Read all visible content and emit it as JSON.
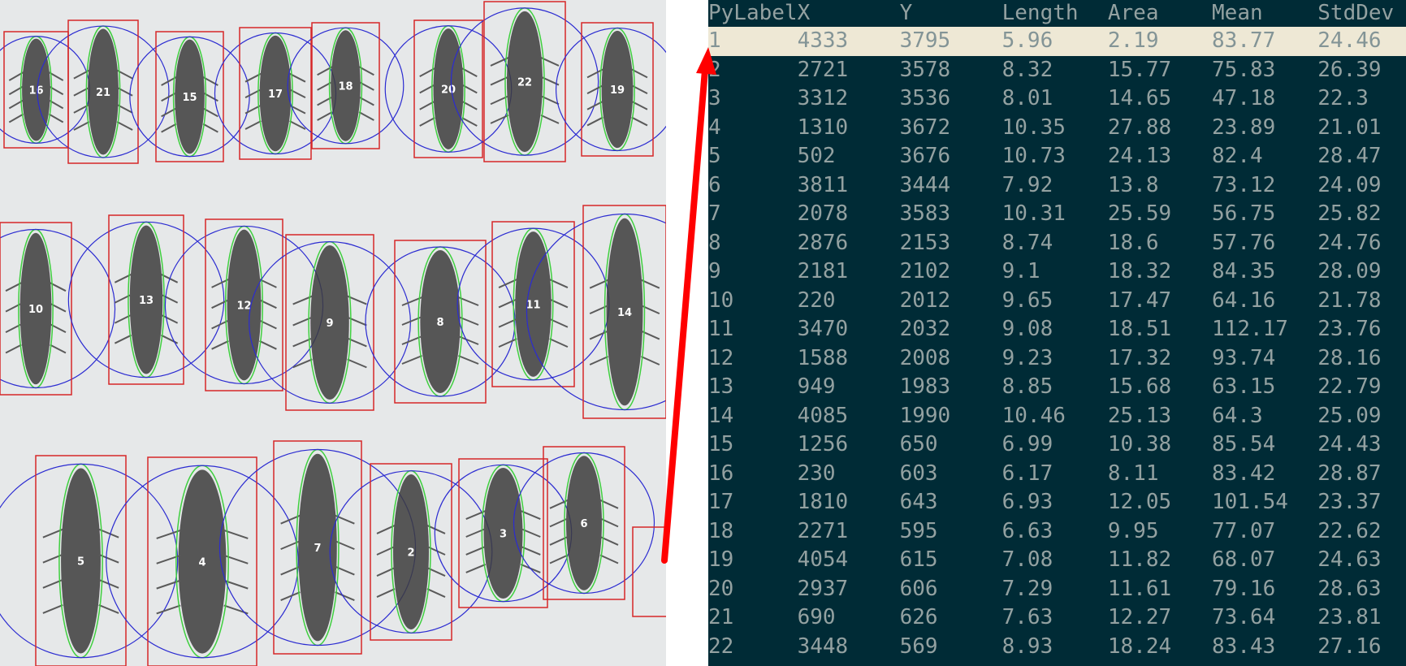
{
  "specimen_image": {
    "labels": [
      "16",
      "21",
      "15",
      "17",
      "18",
      "20",
      "22",
      "19",
      "10",
      "13",
      "12",
      "9",
      "8",
      "11",
      "14",
      "5",
      "4",
      "7",
      "2",
      "3",
      "6"
    ]
  },
  "results_table": {
    "columns": [
      "PyLabel",
      "X",
      "Y",
      "Length",
      "Area",
      "Mean",
      "StdDev"
    ],
    "selected_row": 1,
    "rows": [
      [
        "1",
        "4333",
        "3795",
        "5.96",
        "2.19",
        "83.77",
        "24.46"
      ],
      [
        "2",
        "2721",
        "3578",
        "8.32",
        "15.77",
        "75.83",
        "26.39"
      ],
      [
        "3",
        "3312",
        "3536",
        "8.01",
        "14.65",
        "47.18",
        "22.3"
      ],
      [
        "4",
        "1310",
        "3672",
        "10.35",
        "27.88",
        "23.89",
        "21.01"
      ],
      [
        "5",
        "502",
        "3676",
        "10.73",
        "24.13",
        "82.4",
        "28.47"
      ],
      [
        "6",
        "3811",
        "3444",
        "7.92",
        "13.8",
        "73.12",
        "24.09"
      ],
      [
        "7",
        "2078",
        "3583",
        "10.31",
        "25.59",
        "56.75",
        "25.82"
      ],
      [
        "8",
        "2876",
        "2153",
        "8.74",
        "18.6",
        "57.76",
        "24.76"
      ],
      [
        "9",
        "2181",
        "2102",
        "9.1",
        "18.32",
        "84.35",
        "28.09"
      ],
      [
        "10",
        "220",
        "2012",
        "9.65",
        "17.47",
        "64.16",
        "21.78"
      ],
      [
        "11",
        "3470",
        "2032",
        "9.08",
        "18.51",
        "112.17",
        "23.76"
      ],
      [
        "12",
        "1588",
        "2008",
        "9.23",
        "17.32",
        "93.74",
        "28.16"
      ],
      [
        "13",
        "949",
        "1983",
        "8.85",
        "15.68",
        "63.15",
        "22.79"
      ],
      [
        "14",
        "4085",
        "1990",
        "10.46",
        "25.13",
        "64.3",
        "25.09"
      ],
      [
        "15",
        "1256",
        "650",
        "6.99",
        "10.38",
        "85.54",
        "24.43"
      ],
      [
        "16",
        "230",
        "603",
        "6.17",
        "8.11",
        "83.42",
        "28.87"
      ],
      [
        "17",
        "1810",
        "643",
        "6.93",
        "12.05",
        "101.54",
        "23.37"
      ],
      [
        "18",
        "2271",
        "595",
        "6.63",
        "9.95",
        "77.07",
        "22.62"
      ],
      [
        "19",
        "4054",
        "615",
        "7.08",
        "11.82",
        "68.07",
        "24.63"
      ],
      [
        "20",
        "2937",
        "606",
        "7.29",
        "11.61",
        "79.16",
        "28.63"
      ],
      [
        "21",
        "690",
        "626",
        "7.63",
        "12.27",
        "73.64",
        "23.81"
      ],
      [
        "22",
        "3448",
        "569",
        "8.93",
        "18.24",
        "83.43",
        "27.16"
      ]
    ]
  },
  "colors": {
    "bounding_box": "#d62728",
    "enclosing_circle": "#2b2bd1",
    "contour": "#3fcf3f",
    "arrow": "#ff0000",
    "table_bg": "#002b36",
    "table_text": "#93a1a1",
    "selected_row_bg": "#eee8d5"
  }
}
